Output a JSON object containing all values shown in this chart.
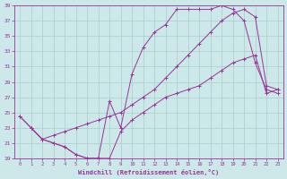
{
  "xlabel": "Windchill (Refroidissement éolien,°C)",
  "bg_color": "#cce8e8",
  "grid_color": "#aacccc",
  "line_color": "#993399",
  "xlim": [
    -0.5,
    23.5
  ],
  "ylim": [
    19,
    39
  ],
  "yticks": [
    19,
    21,
    23,
    25,
    27,
    29,
    31,
    33,
    35,
    37,
    39
  ],
  "xticks": [
    0,
    1,
    2,
    3,
    4,
    5,
    6,
    7,
    8,
    9,
    10,
    11,
    12,
    13,
    14,
    15,
    16,
    17,
    18,
    19,
    20,
    21,
    22,
    23
  ],
  "line1_x": [
    0,
    1,
    2,
    3,
    4,
    5,
    6,
    7,
    8,
    9,
    10,
    11,
    12,
    13,
    14,
    15,
    16,
    17,
    18,
    19,
    20,
    21,
    22,
    23
  ],
  "line1_y": [
    24.5,
    23.0,
    21.5,
    21.0,
    20.5,
    19.5,
    19.0,
    19.0,
    26.5,
    23.0,
    30.0,
    33.5,
    35.5,
    36.5,
    38.5,
    38.5,
    38.5,
    38.5,
    39.0,
    38.5,
    37.0,
    31.5,
    28.0,
    27.5
  ],
  "line2_x": [
    0,
    1,
    2,
    3,
    4,
    5,
    6,
    7,
    8,
    9,
    10,
    11,
    12,
    13,
    14,
    15,
    16,
    17,
    18,
    19,
    20,
    21,
    22,
    23
  ],
  "line2_y": [
    24.5,
    23.0,
    21.5,
    22.0,
    22.5,
    23.0,
    23.5,
    24.0,
    24.5,
    25.0,
    26.0,
    27.0,
    28.0,
    29.5,
    31.0,
    32.5,
    34.0,
    35.5,
    37.0,
    38.0,
    38.5,
    37.5,
    28.5,
    28.0
  ],
  "line3_x": [
    1,
    2,
    3,
    4,
    5,
    6,
    7,
    8,
    9,
    10,
    11,
    12,
    13,
    14,
    15,
    16,
    17,
    18,
    19,
    20,
    21,
    22,
    23
  ],
  "line3_y": [
    23.0,
    21.5,
    21.0,
    20.5,
    19.5,
    19.0,
    19.0,
    19.0,
    22.5,
    24.0,
    25.0,
    26.0,
    27.0,
    27.5,
    28.0,
    28.5,
    29.5,
    30.5,
    31.5,
    32.0,
    32.5,
    27.5,
    28.0
  ]
}
